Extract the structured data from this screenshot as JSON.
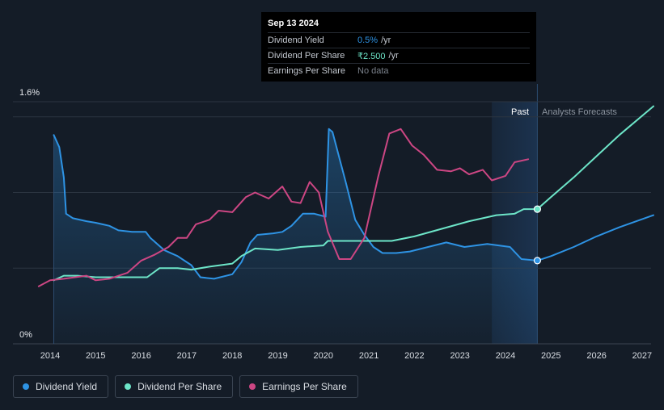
{
  "chart_data": {
    "type": "line",
    "y_axis": {
      "top_label": "1.6%",
      "bottom_label": "0%",
      "ylim": [
        0,
        1.6
      ]
    },
    "x_ticks": [
      "2014",
      "2015",
      "2016",
      "2017",
      "2018",
      "2019",
      "2020",
      "2021",
      "2022",
      "2023",
      "2024",
      "2025",
      "2026",
      "2027"
    ],
    "xlim": [
      2013.75,
      2027.25
    ],
    "past_label": "Past",
    "forecast_label": "Analysts Forecasts",
    "forecast_start": 2024.7,
    "shade_start": 2023.7,
    "grid": true,
    "series": [
      {
        "name": "Dividend Yield",
        "color": "#2e93e4",
        "filled": true,
        "points": [
          [
            2014.08,
            1.38
          ],
          [
            2014.2,
            1.3
          ],
          [
            2014.3,
            1.1
          ],
          [
            2014.35,
            0.86
          ],
          [
            2014.5,
            0.83
          ],
          [
            2014.8,
            0.81
          ],
          [
            2015.0,
            0.8
          ],
          [
            2015.3,
            0.78
          ],
          [
            2015.5,
            0.75
          ],
          [
            2015.8,
            0.74
          ],
          [
            2016.1,
            0.74
          ],
          [
            2016.2,
            0.7
          ],
          [
            2016.5,
            0.62
          ],
          [
            2016.8,
            0.58
          ],
          [
            2017.1,
            0.52
          ],
          [
            2017.3,
            0.44
          ],
          [
            2017.6,
            0.43
          ],
          [
            2018.0,
            0.46
          ],
          [
            2018.2,
            0.54
          ],
          [
            2018.4,
            0.67
          ],
          [
            2018.55,
            0.72
          ],
          [
            2018.9,
            0.73
          ],
          [
            2019.1,
            0.74
          ],
          [
            2019.3,
            0.78
          ],
          [
            2019.55,
            0.86
          ],
          [
            2019.8,
            0.86
          ],
          [
            2020.05,
            0.84
          ],
          [
            2020.12,
            1.42
          ],
          [
            2020.2,
            1.4
          ],
          [
            2020.5,
            1.06
          ],
          [
            2020.7,
            0.82
          ],
          [
            2020.9,
            0.72
          ],
          [
            2021.1,
            0.64
          ],
          [
            2021.3,
            0.6
          ],
          [
            2021.6,
            0.6
          ],
          [
            2021.9,
            0.61
          ],
          [
            2022.3,
            0.64
          ],
          [
            2022.7,
            0.67
          ],
          [
            2023.1,
            0.64
          ],
          [
            2023.6,
            0.66
          ],
          [
            2024.1,
            0.64
          ],
          [
            2024.35,
            0.56
          ],
          [
            2024.7,
            0.55
          ],
          [
            2025.0,
            0.58
          ],
          [
            2025.5,
            0.64
          ],
          [
            2026.0,
            0.71
          ],
          [
            2026.5,
            0.77
          ],
          [
            2027.25,
            0.85
          ]
        ]
      },
      {
        "name": "Dividend Per Share",
        "color": "#6de5c8",
        "filled": false,
        "points": [
          [
            2014.08,
            0.42
          ],
          [
            2014.3,
            0.45
          ],
          [
            2014.6,
            0.45
          ],
          [
            2015.0,
            0.44
          ],
          [
            2016.13,
            0.44
          ],
          [
            2016.4,
            0.5
          ],
          [
            2016.8,
            0.5
          ],
          [
            2017.1,
            0.49
          ],
          [
            2017.5,
            0.51
          ],
          [
            2018.0,
            0.53
          ],
          [
            2018.2,
            0.58
          ],
          [
            2018.5,
            0.63
          ],
          [
            2019.0,
            0.62
          ],
          [
            2019.5,
            0.64
          ],
          [
            2020.0,
            0.65
          ],
          [
            2020.1,
            0.68
          ],
          [
            2021.5,
            0.68
          ],
          [
            2022.0,
            0.71
          ],
          [
            2022.6,
            0.76
          ],
          [
            2023.2,
            0.81
          ],
          [
            2023.8,
            0.85
          ],
          [
            2024.2,
            0.86
          ],
          [
            2024.4,
            0.89
          ],
          [
            2024.7,
            0.89
          ],
          [
            2025.0,
            0.97
          ],
          [
            2025.5,
            1.1
          ],
          [
            2026.0,
            1.24
          ],
          [
            2026.5,
            1.38
          ],
          [
            2027.25,
            1.57
          ]
        ]
      },
      {
        "name": "Earnings Per Share",
        "color": "#cc4683",
        "filled": false,
        "points": [
          [
            2013.75,
            0.38
          ],
          [
            2014.0,
            0.42
          ],
          [
            2014.3,
            0.43
          ],
          [
            2014.8,
            0.45
          ],
          [
            2015.0,
            0.42
          ],
          [
            2015.3,
            0.43
          ],
          [
            2015.7,
            0.47
          ],
          [
            2016.0,
            0.55
          ],
          [
            2016.3,
            0.59
          ],
          [
            2016.6,
            0.64
          ],
          [
            2016.8,
            0.7
          ],
          [
            2017.0,
            0.7
          ],
          [
            2017.2,
            0.79
          ],
          [
            2017.5,
            0.82
          ],
          [
            2017.7,
            0.88
          ],
          [
            2018.0,
            0.87
          ],
          [
            2018.3,
            0.97
          ],
          [
            2018.5,
            1.0
          ],
          [
            2018.8,
            0.96
          ],
          [
            2019.1,
            1.04
          ],
          [
            2019.3,
            0.94
          ],
          [
            2019.5,
            0.93
          ],
          [
            2019.7,
            1.07
          ],
          [
            2019.9,
            1.0
          ],
          [
            2020.1,
            0.74
          ],
          [
            2020.35,
            0.56
          ],
          [
            2020.6,
            0.56
          ],
          [
            2020.9,
            0.7
          ],
          [
            2021.2,
            1.1
          ],
          [
            2021.45,
            1.39
          ],
          [
            2021.7,
            1.42
          ],
          [
            2021.95,
            1.31
          ],
          [
            2022.2,
            1.25
          ],
          [
            2022.5,
            1.15
          ],
          [
            2022.8,
            1.14
          ],
          [
            2023.0,
            1.16
          ],
          [
            2023.2,
            1.12
          ],
          [
            2023.5,
            1.15
          ],
          [
            2023.7,
            1.08
          ],
          [
            2024.0,
            1.11
          ],
          [
            2024.2,
            1.2
          ],
          [
            2024.5,
            1.22
          ]
        ]
      }
    ],
    "markers": [
      {
        "series": "Dividend Per Share",
        "x": 2024.7,
        "y": 0.89
      },
      {
        "series": "Dividend Yield",
        "x": 2024.7,
        "y": 0.55
      }
    ]
  },
  "tooltip": {
    "date": "Sep 13 2024",
    "rows": [
      {
        "name": "Dividend Yield",
        "value": "0.5%",
        "unit": "/yr",
        "color": "#2e93e4"
      },
      {
        "name": "Dividend Per Share",
        "value": "₹2.500",
        "unit": "/yr",
        "color": "#6de5c8"
      },
      {
        "name": "Earnings Per Share",
        "value": "No data",
        "unit": "",
        "color": "#7b828c"
      }
    ]
  },
  "legend": [
    {
      "label": "Dividend Yield",
      "color": "#2e93e4"
    },
    {
      "label": "Dividend Per Share",
      "color": "#6de5c8"
    },
    {
      "label": "Earnings Per Share",
      "color": "#cc4683"
    }
  ]
}
